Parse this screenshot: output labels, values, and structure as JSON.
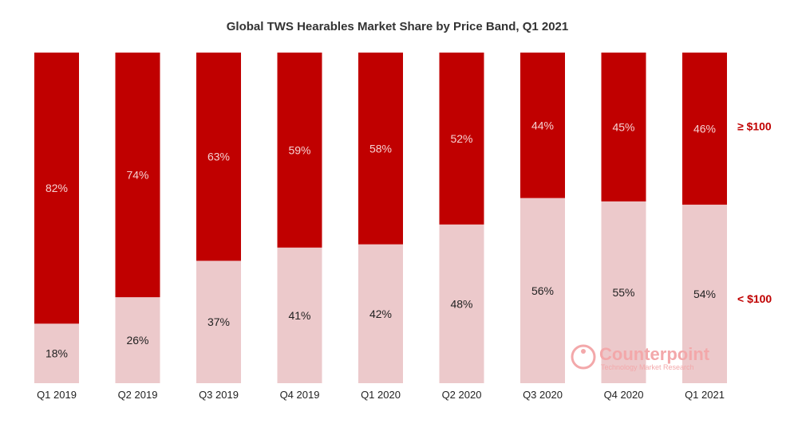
{
  "chart_data": {
    "type": "bar",
    "stacked": true,
    "title": "Global TWS Hearables Market Share by Price Band, Q1 2021",
    "xlabel": "",
    "ylabel": "",
    "ylim": [
      0,
      100
    ],
    "categories": [
      "Q1 2019",
      "Q2 2019",
      "Q3 2019",
      "Q4 2019",
      "Q1 2020",
      "Q2 2020",
      "Q3 2020",
      "Q4 2020",
      "Q1 2021"
    ],
    "series": [
      {
        "name": "< $100",
        "values": [
          18,
          26,
          37,
          41,
          42,
          48,
          56,
          55,
          54
        ],
        "labels": [
          "18%",
          "26%",
          "37%",
          "41%",
          "42%",
          "48%",
          "56%",
          "55%",
          "54%"
        ],
        "color": "#ecc9cb",
        "label_color": "#222222"
      },
      {
        "name": "≥ $100",
        "values": [
          82,
          74,
          63,
          59,
          58,
          52,
          44,
          45,
          46
        ],
        "labels": [
          "82%",
          "74%",
          "63%",
          "59%",
          "58%",
          "52%",
          "44%",
          "45%",
          "46%"
        ],
        "color": "#c00000",
        "label_color": "#f6d2d2"
      }
    ],
    "legend": {
      "placement": "right",
      "color": "#c00000"
    },
    "grid": false
  },
  "watermark": {
    "name": "Counterpoint",
    "tagline": "Technology Market Research",
    "color": "#f3a8aa",
    "icon": "counterpoint-logo-icon"
  }
}
